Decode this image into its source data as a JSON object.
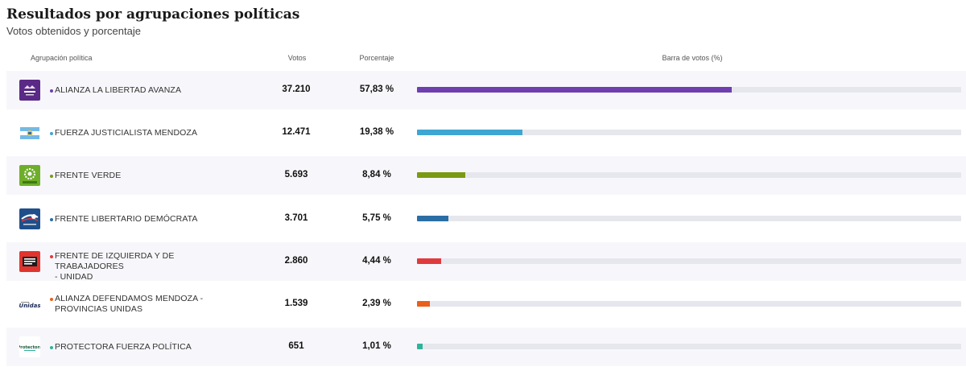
{
  "title": "Resultados por agrupaciones políticas",
  "subtitle": "Votos obtenidos y porcentaje",
  "headers": {
    "party": "Agrupación política",
    "votes": "Votos",
    "percent": "Porcentaje",
    "bar": "Barra de votos (%)"
  },
  "chart_data": {
    "type": "bar",
    "title": "Resultados por agrupaciones políticas",
    "subtitle": "Votos obtenidos y porcentaje",
    "ylim": [
      0,
      100
    ],
    "rows": [
      {
        "party": "ALIANZA LA LIBERTAD AVANZA",
        "party_lines": [
          "ALIANZA LA LIBERTAD AVANZA"
        ],
        "votes": 37210,
        "votes_label": "37.210",
        "percent": 57.83,
        "percent_label": "57,83 %",
        "color": "#6f3fb0",
        "logo_icon": "libertad-avanza-logo-icon",
        "logo_bg": "#5a2a86"
      },
      {
        "party": "FUERZA JUSTICIALISTA MENDOZA",
        "party_lines": [
          "FUERZA JUSTICIALISTA MENDOZA"
        ],
        "votes": 12471,
        "votes_label": "12.471",
        "percent": 19.38,
        "percent_label": "19,38 %",
        "color": "#3ea6d3",
        "logo_icon": "justicialista-flag-logo-icon",
        "logo_bg": "#ffffff"
      },
      {
        "party": "FRENTE VERDE",
        "party_lines": [
          "FRENTE VERDE"
        ],
        "votes": 5693,
        "votes_label": "5.693",
        "percent": 8.84,
        "percent_label": "8,84 %",
        "color": "#7a9a14",
        "logo_icon": "frente-verde-logo-icon",
        "logo_bg": "#6fae2b",
        "logo_text": "Frente Verde"
      },
      {
        "party": "FRENTE LIBERTARIO DEMÓCRATA",
        "party_lines": [
          "FRENTE LIBERTARIO DEMÓCRATA"
        ],
        "votes": 3701,
        "votes_label": "3.701",
        "percent": 5.75,
        "percent_label": "5,75 %",
        "color": "#2b6ea6",
        "logo_icon": "libertario-democrata-logo-icon",
        "logo_bg": "#1f4f8a"
      },
      {
        "party": "FRENTE DE IZQUIERDA Y DE TRABAJADORES - UNIDAD",
        "party_lines": [
          "FRENTE DE IZQUIERDA Y DE TRABAJADORES",
          "- UNIDAD"
        ],
        "votes": 2860,
        "votes_label": "2.860",
        "percent": 4.44,
        "percent_label": "4,44 %",
        "color": "#e03a3e",
        "logo_icon": "frente-izquierda-logo-icon",
        "logo_bg": "#e2342f"
      },
      {
        "party": "ALIANZA DEFENDAMOS MENDOZA - PROVINCIAS UNIDAS",
        "party_lines": [
          "ALIANZA DEFENDAMOS MENDOZA -",
          "PROVINCIAS UNIDAS"
        ],
        "votes": 1539,
        "votes_label": "1.539",
        "percent": 2.39,
        "percent_label": "2,39 %",
        "color": "#e8601c",
        "logo_icon": "provincias-unidas-logo-icon",
        "logo_bg": "#ffffff",
        "logo_text": "Unidas"
      },
      {
        "party": "PROTECTORA FUERZA POLÍTICA",
        "party_lines": [
          "PROTECTORA FUERZA POLÍTICA"
        ],
        "votes": 651,
        "votes_label": "651",
        "percent": 1.01,
        "percent_label": "1,01 %",
        "color": "#2fb39b",
        "logo_icon": "protectora-logo-icon",
        "logo_bg": "#ffffff",
        "logo_text": "Protectora"
      }
    ]
  }
}
